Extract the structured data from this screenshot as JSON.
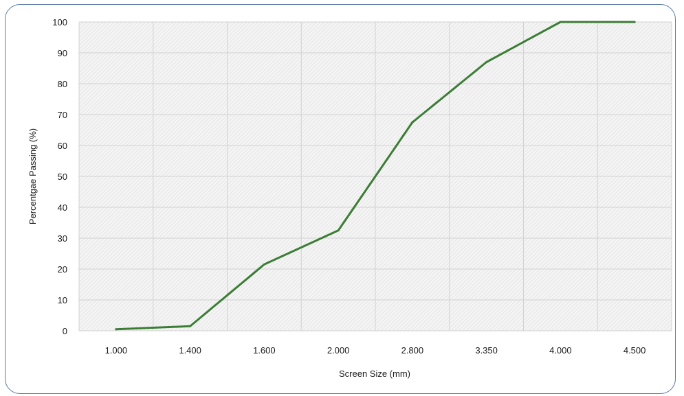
{
  "chart_data": {
    "type": "line",
    "title": "",
    "xlabel": "Screen Size (mm)",
    "ylabel": "Percentgae Passing (%)",
    "categories": [
      "1.000",
      "1.400",
      "1.600",
      "2.000",
      "2.800",
      "3.350",
      "4.000",
      "4.500"
    ],
    "series": [
      {
        "values": [
          0.5,
          1.5,
          21.5,
          32.5,
          67.5,
          87,
          100,
          100
        ],
        "color": "#3b7d35"
      }
    ],
    "ylim": [
      0,
      100
    ],
    "yticks": [
      "0",
      "10",
      "20",
      "30",
      "40",
      "50",
      "60",
      "70",
      "80",
      "90",
      "100"
    ],
    "grid": true,
    "legend": "none"
  }
}
